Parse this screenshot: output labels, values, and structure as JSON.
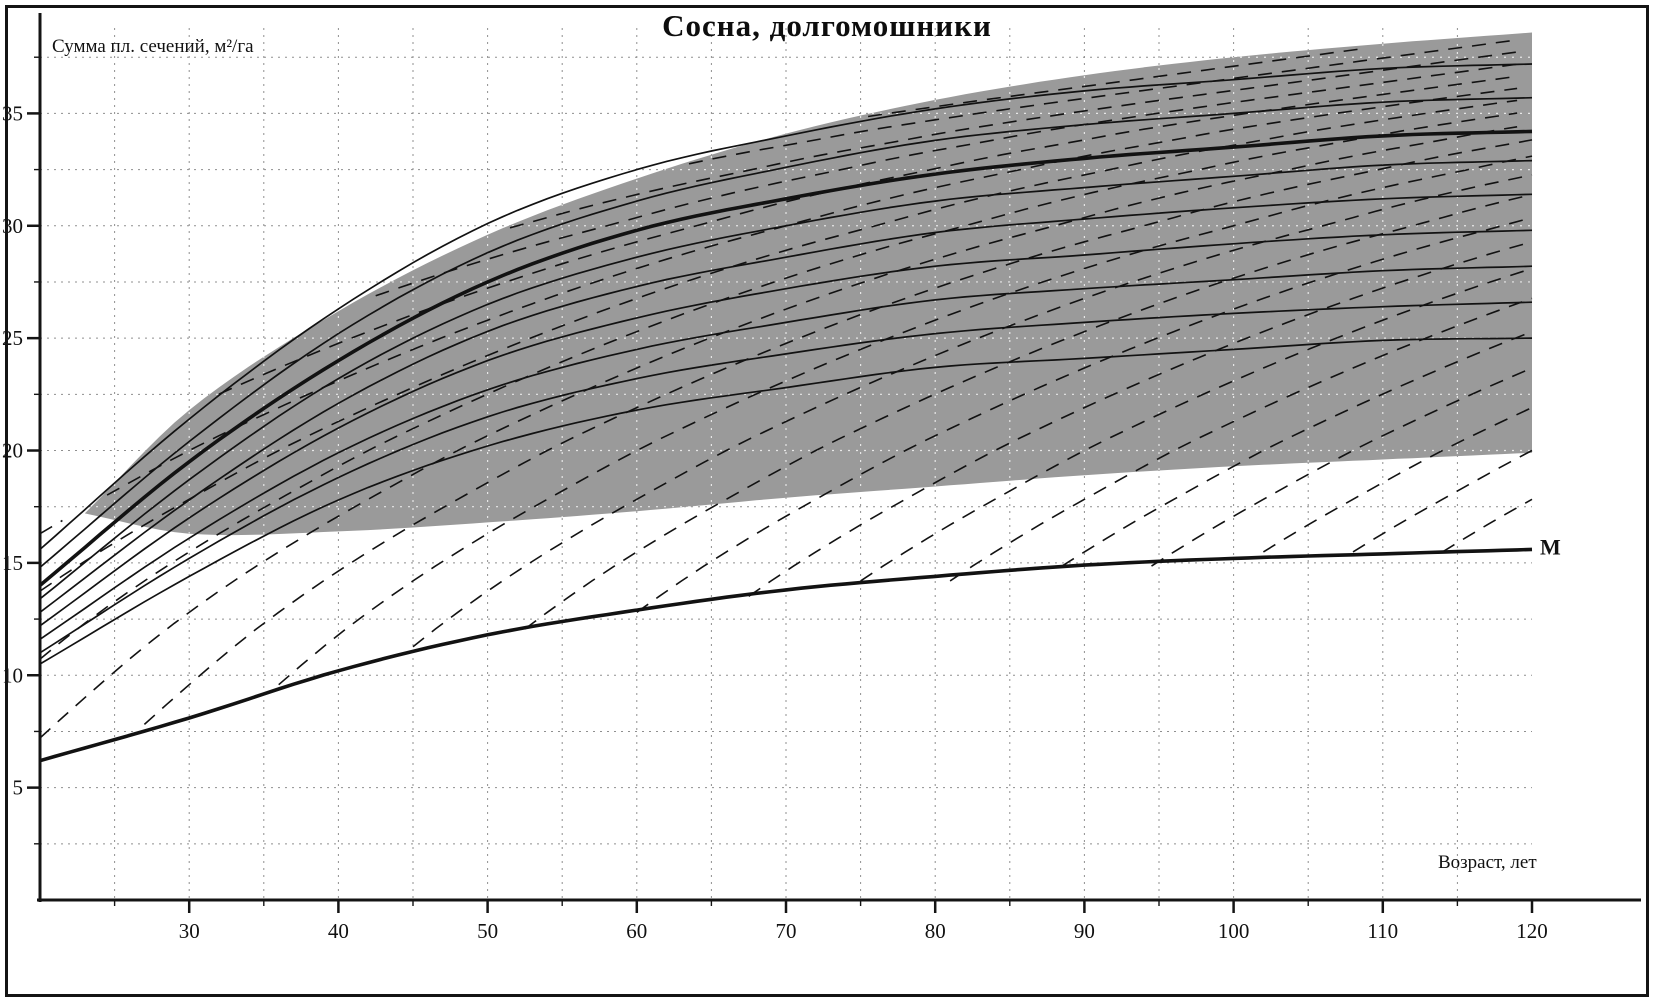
{
  "colors": {
    "curve": "#121212",
    "band": "#9a9a9a",
    "grid": "#8f8f8f",
    "grid_on_band": "#f0f0f0",
    "frame": "#141414"
  },
  "chart_data": {
    "type": "line",
    "title": "Сосна, долгомошники",
    "ylabel": "Сумма пл. сечений, м²/га",
    "xlabel": "Возраст, лет",
    "xlim": [
      20,
      120
    ],
    "ylim": [
      0,
      38.8
    ],
    "xticks": [
      30,
      40,
      50,
      60,
      70,
      80,
      90,
      100,
      110,
      120
    ],
    "yticks": [
      5,
      10,
      15,
      20,
      25,
      30,
      35
    ],
    "grid": {
      "x_step": 5,
      "y_step": 2.5,
      "style": "dotted"
    },
    "x": [
      20,
      30,
      40,
      50,
      60,
      70,
      80,
      90,
      100,
      110,
      120
    ],
    "band": {
      "x": [
        23,
        30,
        40,
        50,
        60,
        70,
        80,
        90,
        100,
        110,
        120
      ],
      "top": [
        17.2,
        21.8,
        26.2,
        29.6,
        32.1,
        34.1,
        35.6,
        36.7,
        37.5,
        38.1,
        38.6
      ],
      "bottom": [
        17.2,
        16.3,
        16.4,
        16.8,
        17.3,
        17.9,
        18.4,
        18.9,
        19.3,
        19.6,
        19.9
      ]
    },
    "series": [
      {
        "name": "upper-thin-curve-2",
        "role": "thin",
        "values": [
          15.6,
          21.4,
          26.3,
          30.1,
          32.5,
          34.0,
          35.2,
          36.0,
          36.5,
          37.0,
          37.2
        ]
      },
      {
        "name": "upper-thin-curve-1",
        "role": "thin",
        "values": [
          14.8,
          20.4,
          25.2,
          28.8,
          31.1,
          32.6,
          33.8,
          34.5,
          35.0,
          35.5,
          35.7
        ]
      },
      {
        "name": "bold-main-curve",
        "role": "bold",
        "values": [
          14.0,
          19.5,
          24.0,
          27.5,
          29.8,
          31.2,
          32.3,
          33.0,
          33.5,
          34.0,
          34.2
        ]
      },
      {
        "name": "thin-curve-1",
        "role": "thin",
        "values": [
          13.4,
          18.7,
          23.2,
          26.5,
          28.6,
          30.0,
          31.1,
          31.7,
          32.2,
          32.7,
          32.9
        ]
      },
      {
        "name": "thin-curve-2",
        "role": "thin",
        "values": [
          12.8,
          17.8,
          22.1,
          25.3,
          27.3,
          28.6,
          29.7,
          30.3,
          30.8,
          31.2,
          31.4
        ]
      },
      {
        "name": "thin-curve-3",
        "role": "thin",
        "values": [
          12.2,
          17.0,
          21.0,
          24.0,
          25.9,
          27.2,
          28.2,
          28.7,
          29.2,
          29.6,
          29.8
        ]
      },
      {
        "name": "thin-curve-4",
        "role": "thin",
        "values": [
          11.6,
          16.1,
          19.9,
          22.7,
          24.5,
          25.7,
          26.7,
          27.2,
          27.6,
          28.0,
          28.2
        ]
      },
      {
        "name": "thin-curve-5",
        "role": "thin",
        "values": [
          11.0,
          15.2,
          18.8,
          21.5,
          23.2,
          24.3,
          25.2,
          25.7,
          26.1,
          26.4,
          26.6
        ]
      },
      {
        "name": "thin-curve-6",
        "role": "thin",
        "values": [
          10.5,
          14.4,
          17.8,
          20.2,
          21.8,
          22.8,
          23.7,
          24.1,
          24.5,
          24.9,
          25.0
        ]
      },
      {
        "name": "minimum-basal-area-curve",
        "role": "bold",
        "label": "М",
        "values": [
          6.2,
          8.1,
          10.2,
          11.8,
          12.9,
          13.8,
          14.4,
          14.9,
          15.2,
          15.4,
          15.6
        ]
      }
    ],
    "thinning_lines": {
      "style": "dashed",
      "template_dx": [
        0,
        5,
        10,
        15,
        20,
        25,
        30,
        35,
        40,
        45,
        50,
        55,
        60,
        65,
        70,
        75,
        80,
        85,
        90,
        95,
        100,
        110,
        120
      ],
      "template_y": [
        6,
        9,
        11.8,
        14.2,
        16.3,
        18.2,
        20,
        21.6,
        23.1,
        24.5,
        25.8,
        27,
        28.1,
        29.1,
        30,
        30.9,
        31.7,
        32.4,
        33.1,
        33.7,
        34.3,
        35.3,
        36.2
      ],
      "offsets": [
        -36,
        -30,
        -24,
        -18,
        -12,
        -6,
        0,
        6,
        12,
        18,
        24,
        30,
        36,
        42,
        48,
        54,
        60,
        66,
        72,
        78,
        84,
        90,
        96,
        102
      ]
    }
  }
}
